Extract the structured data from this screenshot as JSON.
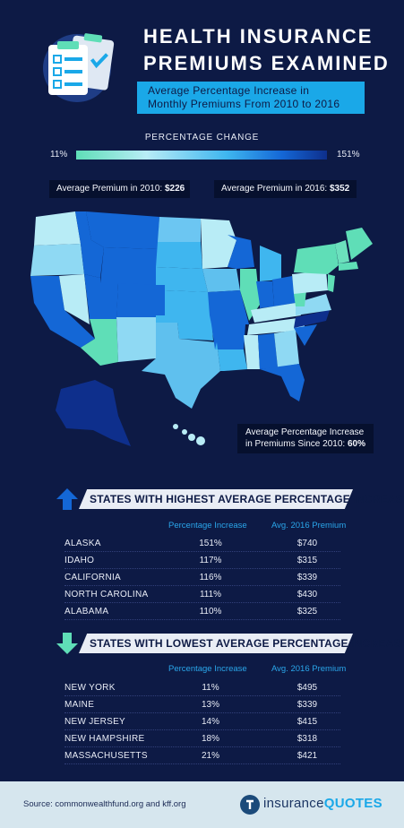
{
  "header": {
    "title_line1": "HEALTH INSURANCE",
    "title_line2": "PREMIUMS EXAMINED",
    "subtitle_line1": "Average Percentage Increase in",
    "subtitle_line2": "Monthly Premiums From 2010 to 2016",
    "icon": "clipboard-checklist-icon"
  },
  "legend": {
    "title": "PERCENTAGE CHANGE",
    "min": "11%",
    "max": "151%",
    "colors": [
      "#5fdeb7",
      "#b8ecf6",
      "#3fb6ef",
      "#1467d6",
      "#0e2f8c"
    ]
  },
  "premiums": {
    "label_2010": "Average Premium in 2010:",
    "value_2010": "$226",
    "label_2016": "Average Premium in 2016:",
    "value_2016": "$352"
  },
  "average_increase": {
    "line1": "Average Percentage Increase",
    "line2": "in Premiums Since 2010:",
    "value": "60%"
  },
  "chart_data": {
    "type": "table",
    "tables": [
      {
        "title": "STATES WITH HIGHEST AVERAGE PERCENTAGE INCREASE",
        "columns": [
          "Percentage Increase",
          "Avg. 2016 Premium"
        ],
        "rows": [
          {
            "state": "ALASKA",
            "pct": "151%",
            "premium": "$740"
          },
          {
            "state": "IDAHO",
            "pct": "117%",
            "premium": "$315"
          },
          {
            "state": "CALIFORNIA",
            "pct": "116%",
            "premium": "$339"
          },
          {
            "state": "NORTH CAROLINA",
            "pct": "111%",
            "premium": "$430"
          },
          {
            "state": "ALABAMA",
            "pct": "110%",
            "premium": "$325"
          }
        ]
      },
      {
        "title": "STATES WITH LOWEST AVERAGE PERCENTAGE INCREASE",
        "columns": [
          "Percentage Increase",
          "Avg. 2016 Premium"
        ],
        "rows": [
          {
            "state": "NEW YORK",
            "pct": "11%",
            "premium": "$495"
          },
          {
            "state": "MAINE",
            "pct": "13%",
            "premium": "$339"
          },
          {
            "state": "NEW JERSEY",
            "pct": "14%",
            "premium": "$415"
          },
          {
            "state": "NEW HAMPSHIRE",
            "pct": "18%",
            "premium": "$318"
          },
          {
            "state": "MASSACHUSETTS",
            "pct": "21%",
            "premium": "$421"
          }
        ]
      }
    ]
  },
  "footer": {
    "source": "Source: commonwealthfund.org and kff.org",
    "brand_part1": "insurance",
    "brand_part2": "QUOTES"
  }
}
